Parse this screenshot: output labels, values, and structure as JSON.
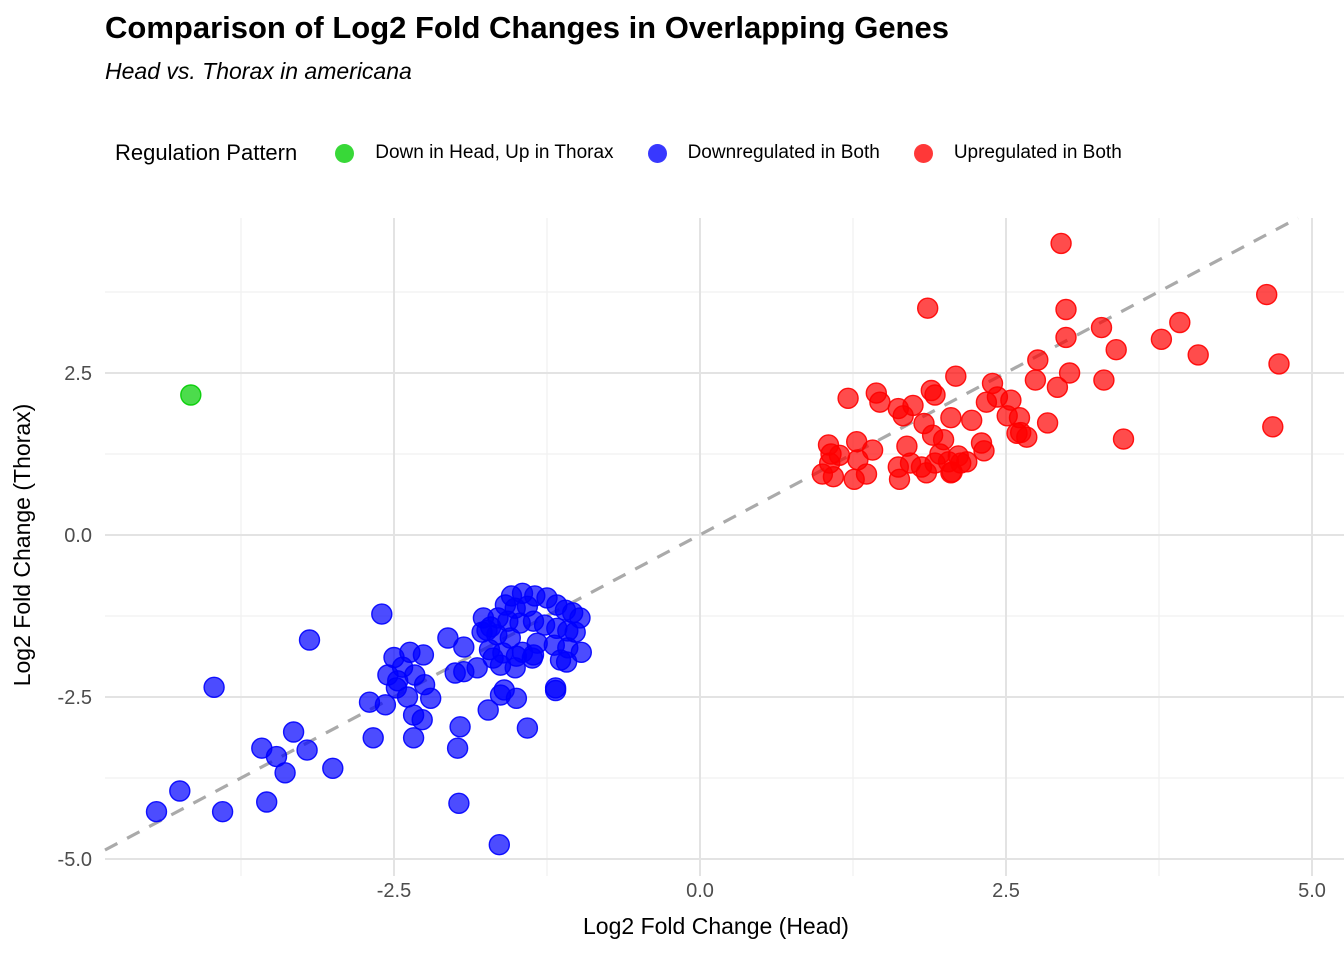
{
  "title": "Comparison of Log2 Fold Changes in Overlapping Genes",
  "subtitle": "Head vs. Thorax in americana",
  "legend": {
    "title": "Regulation Pattern",
    "position": "top"
  },
  "colors": {
    "down_up": "#00cd00",
    "down_both": "#0000ff",
    "up_both": "#ff0000",
    "reference_line": "#aaaaaa",
    "grid_major": "#e3e3e3",
    "grid_minor": "#f1f1f1",
    "tick_text": "#4d4d4d"
  },
  "chart_data": {
    "type": "scatter",
    "title": "Comparison of Log2 Fold Changes in Overlapping Genes",
    "subtitle": "Head vs. Thorax in americana",
    "xlabel": "Log2 Fold Change (Head)",
    "ylabel": "Log2 Fold Change (Thorax)",
    "xlim": [
      -4.9,
      5.3
    ],
    "ylim": [
      -5.3,
      4.9
    ],
    "xticks": {
      "values": [
        -2.5,
        0,
        2.5,
        5
      ],
      "labels": [
        "-2.5",
        "0.0",
        "2.5",
        "5.0"
      ]
    },
    "yticks": {
      "values": [
        -5,
        -2.5,
        0,
        2.5
      ],
      "labels": [
        "-5.0",
        "-2.5",
        "0.0",
        "2.5"
      ]
    },
    "grid": {
      "major_x": [
        -2.5,
        0,
        2.5,
        5
      ],
      "minor_x": [
        -3.75,
        -1.25,
        1.25,
        3.75
      ],
      "major_y": [
        -5,
        -2.5,
        0,
        2.5
      ],
      "minor_y": [
        -3.75,
        -1.25,
        1.25,
        3.75
      ]
    },
    "reference_line": {
      "type": "identity y=x",
      "style": "dashed",
      "color": "#aaaaaa"
    },
    "legend_position": "top",
    "point_opacity": 0.7,
    "series": [
      {
        "name": "Down in Head, Up in Thorax",
        "color": "#00cd00",
        "points": [
          [
            -4.16,
            2.16
          ]
        ]
      },
      {
        "name": "Downregulated in Both",
        "color": "#0000ff",
        "points": [
          [
            -4.44,
            -4.27
          ],
          [
            -4.25,
            -3.95
          ],
          [
            -3.9,
            -4.27
          ],
          [
            -3.97,
            -2.35
          ],
          [
            -3.58,
            -3.29
          ],
          [
            -3.46,
            -3.42
          ],
          [
            -3.32,
            -3.04
          ],
          [
            -3.39,
            -3.67
          ],
          [
            -3.21,
            -3.32
          ],
          [
            -3.0,
            -3.6
          ],
          [
            -3.54,
            -4.12
          ],
          [
            -3.19,
            -1.62
          ],
          [
            -2.6,
            -1.22
          ],
          [
            -2.5,
            -1.89
          ],
          [
            -2.55,
            -2.16
          ],
          [
            -2.47,
            -2.25
          ],
          [
            -2.7,
            -2.58
          ],
          [
            -2.57,
            -2.62
          ],
          [
            -2.67,
            -3.13
          ],
          [
            -2.39,
            -2.5
          ],
          [
            -2.34,
            -2.78
          ],
          [
            -2.27,
            -2.85
          ],
          [
            -2.2,
            -2.52
          ],
          [
            -2.34,
            -3.13
          ],
          [
            -1.96,
            -2.96
          ],
          [
            -1.98,
            -3.29
          ],
          [
            -1.73,
            -2.7
          ],
          [
            -1.63,
            -2.47
          ],
          [
            -1.5,
            -2.52
          ],
          [
            -1.41,
            -2.98
          ],
          [
            -1.18,
            -2.4
          ],
          [
            -1.97,
            -4.14
          ],
          [
            -1.64,
            -4.78
          ],
          [
            -2.06,
            -1.59
          ],
          [
            -2.37,
            -1.81
          ],
          [
            -2.26,
            -1.85
          ],
          [
            -2.43,
            -2.04
          ],
          [
            -2.33,
            -2.16
          ],
          [
            -2.25,
            -2.31
          ],
          [
            -2.48,
            -2.36
          ],
          [
            -1.77,
            -1.28
          ],
          [
            -1.78,
            -1.5
          ],
          [
            -1.93,
            -1.73
          ],
          [
            -1.82,
            -2.05
          ],
          [
            -1.93,
            -2.11
          ],
          [
            -2.0,
            -2.13
          ],
          [
            -1.69,
            -1.9
          ],
          [
            -1.6,
            -2.39
          ],
          [
            -1.45,
            -1.81
          ],
          [
            -1.36,
            -1.85
          ],
          [
            -1.19,
            -1.7
          ],
          [
            -0.97,
            -1.81
          ],
          [
            -1.14,
            -1.93
          ],
          [
            -1.09,
            -1.96
          ],
          [
            -1.18,
            -2.36
          ],
          [
            -1.54,
            -0.94
          ],
          [
            -1.45,
            -0.9
          ],
          [
            -1.35,
            -0.94
          ],
          [
            -1.25,
            -0.97
          ],
          [
            -1.59,
            -1.08
          ],
          [
            -1.51,
            -1.13
          ],
          [
            -1.41,
            -1.1
          ],
          [
            -1.17,
            -1.08
          ],
          [
            -1.1,
            -1.16
          ],
          [
            -1.04,
            -1.2
          ],
          [
            -0.98,
            -1.28
          ],
          [
            -1.65,
            -1.28
          ],
          [
            -1.57,
            -1.33
          ],
          [
            -1.47,
            -1.36
          ],
          [
            -1.36,
            -1.33
          ],
          [
            -1.27,
            -1.39
          ],
          [
            -1.17,
            -1.44
          ],
          [
            -1.08,
            -1.48
          ],
          [
            -1.74,
            -1.47
          ],
          [
            -1.66,
            -1.54
          ],
          [
            -1.55,
            -1.59
          ],
          [
            -1.33,
            -1.67
          ],
          [
            -1.72,
            -1.77
          ],
          [
            -1.61,
            -1.82
          ],
          [
            -1.5,
            -1.87
          ],
          [
            -1.37,
            -1.9
          ],
          [
            -1.63,
            -2.01
          ],
          [
            -1.51,
            -2.05
          ],
          [
            -1.02,
            -1.5
          ],
          [
            -1.71,
            -1.42
          ],
          [
            -1.08,
            -1.74
          ]
        ]
      },
      {
        "name": "Upregulated in Both",
        "color": "#ff0000",
        "points": [
          [
            2.95,
            4.5
          ],
          [
            1.86,
            3.5
          ],
          [
            2.99,
            3.48
          ],
          [
            2.99,
            3.05
          ],
          [
            3.28,
            3.2
          ],
          [
            3.4,
            2.86
          ],
          [
            3.77,
            3.02
          ],
          [
            3.92,
            3.28
          ],
          [
            4.63,
            3.71
          ],
          [
            4.07,
            2.78
          ],
          [
            4.73,
            2.64
          ],
          [
            4.68,
            1.67
          ],
          [
            3.46,
            1.48
          ],
          [
            3.3,
            2.39
          ],
          [
            2.76,
            2.7
          ],
          [
            2.74,
            2.39
          ],
          [
            2.92,
            2.28
          ],
          [
            3.02,
            2.5
          ],
          [
            2.09,
            2.45
          ],
          [
            1.21,
            2.11
          ],
          [
            1.44,
            2.19
          ],
          [
            1.47,
            2.05
          ],
          [
            1.66,
            1.84
          ],
          [
            1.62,
            1.95
          ],
          [
            1.74,
            2.0
          ],
          [
            1.89,
            2.23
          ],
          [
            1.92,
            2.16
          ],
          [
            1.83,
            1.72
          ],
          [
            2.05,
            1.81
          ],
          [
            2.22,
            1.77
          ],
          [
            2.39,
            2.34
          ],
          [
            2.34,
            2.05
          ],
          [
            2.43,
            2.13
          ],
          [
            2.54,
            2.08
          ],
          [
            2.51,
            1.84
          ],
          [
            2.61,
            1.81
          ],
          [
            2.62,
            1.58
          ],
          [
            2.84,
            1.73
          ],
          [
            2.32,
            1.3
          ],
          [
            1.99,
            1.47
          ],
          [
            1.96,
            1.25
          ],
          [
            2.11,
            1.22
          ],
          [
            2.13,
            1.11
          ],
          [
            1.92,
            1.11
          ],
          [
            1.69,
            1.37
          ],
          [
            1.72,
            1.11
          ],
          [
            1.81,
            1.05
          ],
          [
            1.07,
            1.25
          ],
          [
            1.06,
            1.11
          ],
          [
            1.0,
            0.94
          ],
          [
            1.29,
            1.16
          ],
          [
            1.36,
            0.94
          ],
          [
            1.26,
            0.86
          ],
          [
            1.63,
            0.86
          ],
          [
            1.05,
            1.39
          ],
          [
            1.14,
            1.23
          ],
          [
            1.09,
            0.9
          ],
          [
            1.28,
            1.44
          ],
          [
            1.41,
            1.31
          ],
          [
            1.62,
            1.05
          ],
          [
            1.9,
            1.54
          ],
          [
            2.03,
            1.13
          ],
          [
            2.06,
            0.97
          ],
          [
            2.18,
            1.13
          ],
          [
            2.3,
            1.42
          ],
          [
            2.59,
            1.57
          ],
          [
            2.67,
            1.51
          ],
          [
            1.85,
            0.96
          ],
          [
            2.05,
            0.96
          ]
        ]
      }
    ]
  }
}
